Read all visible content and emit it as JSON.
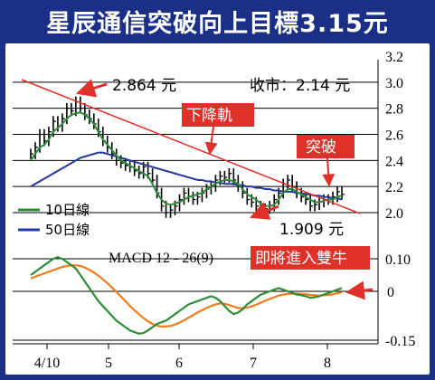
{
  "title": "星辰通信突破向上目標3.15元",
  "annotations": {
    "high_label": "2.864 元",
    "close_label": "收市：2.14 元",
    "low_label": "1.909 元",
    "resistance_callout": "下降軌",
    "breakout_callout": "突破",
    "macd_callout": "即將進入雙牛"
  },
  "colors": {
    "frame": "#1b2f86",
    "ma10": "#2e8b3a",
    "ma50": "#24389a",
    "trend": "#e0302a",
    "callout_bg": "#e0302a",
    "diff": "#2e8b3a",
    "dea": "#ee7d1e",
    "candle": "#000000"
  },
  "chart_data": [
    {
      "type": "line",
      "name": "price",
      "x_tick_labels": [
        "4/10",
        "5",
        "6",
        "7",
        "8"
      ],
      "y_ticks": [
        2.0,
        2.2,
        2.4,
        2.6,
        2.8,
        3.0,
        3.2
      ],
      "ylim": [
        1.9,
        3.25
      ],
      "legend": [
        {
          "label": "10日線",
          "color": "#2e8b3a"
        },
        {
          "label": "50日線",
          "color": "#24389a"
        }
      ],
      "close": [
        2.45,
        2.5,
        2.6,
        2.55,
        2.62,
        2.7,
        2.66,
        2.72,
        2.8,
        2.78,
        2.85,
        2.8,
        2.75,
        2.72,
        2.68,
        2.62,
        2.55,
        2.5,
        2.45,
        2.4,
        2.38,
        2.36,
        2.35,
        2.32,
        2.3,
        2.35,
        2.3,
        2.25,
        2.15,
        2.05,
        2.0,
        2.02,
        2.05,
        2.1,
        2.15,
        2.12,
        2.1,
        2.12,
        2.15,
        2.18,
        2.2,
        2.25,
        2.28,
        2.27,
        2.3,
        2.25,
        2.2,
        2.15,
        2.1,
        2.08,
        2.05,
        2.0,
        2.03,
        2.05,
        2.1,
        2.15,
        2.22,
        2.25,
        2.2,
        2.15,
        2.12,
        2.1,
        2.05,
        2.06,
        2.08,
        2.1,
        2.1,
        2.12,
        2.16,
        2.14
      ],
      "ma10": [
        2.4,
        2.45,
        2.5,
        2.52,
        2.56,
        2.62,
        2.65,
        2.68,
        2.72,
        2.75,
        2.76,
        2.77,
        2.75,
        2.72,
        2.68,
        2.62,
        2.56,
        2.52,
        2.48,
        2.44,
        2.4,
        2.38,
        2.36,
        2.34,
        2.32,
        2.3,
        2.28,
        2.22,
        2.15,
        2.1,
        2.07,
        2.06,
        2.07,
        2.08,
        2.1,
        2.12,
        2.13,
        2.14,
        2.15,
        2.18,
        2.2,
        2.22,
        2.24,
        2.25,
        2.25,
        2.24,
        2.22,
        2.18,
        2.14,
        2.12,
        2.1,
        2.07,
        2.05,
        2.05,
        2.06,
        2.1,
        2.15,
        2.18,
        2.18,
        2.16,
        2.14,
        2.12,
        2.1,
        2.08,
        2.08,
        2.09,
        2.1,
        2.1,
        2.12,
        2.13
      ],
      "ma50": [
        2.2,
        2.22,
        2.24,
        2.26,
        2.28,
        2.3,
        2.32,
        2.34,
        2.36,
        2.38,
        2.4,
        2.42,
        2.43,
        2.44,
        2.45,
        2.46,
        2.46,
        2.45,
        2.44,
        2.43,
        2.42,
        2.41,
        2.4,
        2.39,
        2.38,
        2.37,
        2.36,
        2.35,
        2.34,
        2.33,
        2.32,
        2.31,
        2.3,
        2.29,
        2.28,
        2.27,
        2.26,
        2.25,
        2.25,
        2.24,
        2.24,
        2.23,
        2.23,
        2.22,
        2.22,
        2.22,
        2.21,
        2.21,
        2.2,
        2.2,
        2.19,
        2.19,
        2.18,
        2.18,
        2.17,
        2.17,
        2.16,
        2.16,
        2.16,
        2.15,
        2.15,
        2.14,
        2.14,
        2.13,
        2.13,
        2.12,
        2.12,
        2.11,
        2.11,
        2.1
      ]
    },
    {
      "type": "line",
      "name": "macd",
      "title": "MACD 12 - 26(9)",
      "y_ticks": [
        0.1,
        0,
        -0.15
      ],
      "ylim": [
        -0.18,
        0.14
      ],
      "diff": [
        0.05,
        0.06,
        0.07,
        0.08,
        0.09,
        0.1,
        0.105,
        0.1,
        0.09,
        0.08,
        0.07,
        0.05,
        0.03,
        0.01,
        -0.01,
        -0.03,
        -0.045,
        -0.06,
        -0.075,
        -0.09,
        -0.1,
        -0.11,
        -0.12,
        -0.125,
        -0.13,
        -0.128,
        -0.12,
        -0.11,
        -0.1,
        -0.095,
        -0.09,
        -0.08,
        -0.07,
        -0.06,
        -0.05,
        -0.04,
        -0.035,
        -0.03,
        -0.025,
        -0.02,
        -0.015,
        -0.02,
        -0.03,
        -0.045,
        -0.06,
        -0.07,
        -0.065,
        -0.055,
        -0.04,
        -0.03,
        -0.02,
        -0.01,
        -0.005,
        0.0,
        0.005,
        0.01,
        0.005,
        0.0,
        -0.005,
        -0.01,
        -0.012,
        -0.015,
        -0.02,
        -0.018,
        -0.015,
        -0.01,
        -0.005,
        0.0,
        0.005,
        0.01
      ],
      "dea": [
        0.04,
        0.045,
        0.05,
        0.055,
        0.06,
        0.065,
        0.07,
        0.075,
        0.078,
        0.08,
        0.08,
        0.078,
        0.073,
        0.066,
        0.058,
        0.048,
        0.037,
        0.025,
        0.012,
        -0.002,
        -0.016,
        -0.03,
        -0.045,
        -0.058,
        -0.07,
        -0.082,
        -0.092,
        -0.1,
        -0.105,
        -0.108,
        -0.108,
        -0.106,
        -0.102,
        -0.096,
        -0.089,
        -0.081,
        -0.073,
        -0.065,
        -0.058,
        -0.051,
        -0.045,
        -0.04,
        -0.037,
        -0.038,
        -0.042,
        -0.047,
        -0.051,
        -0.052,
        -0.05,
        -0.046,
        -0.041,
        -0.035,
        -0.029,
        -0.023,
        -0.018,
        -0.013,
        -0.01,
        -0.008,
        -0.007,
        -0.007,
        -0.008,
        -0.009,
        -0.011,
        -0.012,
        -0.013,
        -0.012,
        -0.011,
        -0.009,
        -0.006,
        -0.003
      ]
    }
  ]
}
